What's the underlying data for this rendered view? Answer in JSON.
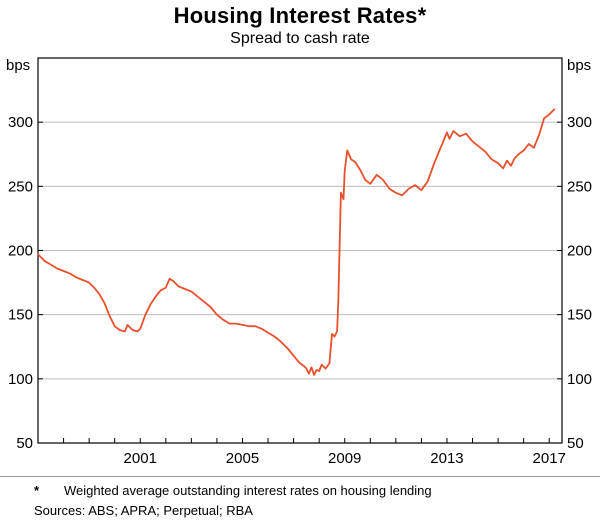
{
  "header": {
    "title": "Housing Interest Rates*",
    "subtitle": "Spread to cash rate"
  },
  "chart_data": {
    "type": "line",
    "title": "Housing Interest Rates*",
    "subtitle": "Spread to cash rate",
    "ylabel_left": "bps",
    "ylabel_right": "bps",
    "xlim": [
      1997,
      2017.5
    ],
    "ylim": [
      50,
      350
    ],
    "yticks": [
      50,
      100,
      150,
      200,
      250,
      300
    ],
    "gridlines": [
      100,
      150,
      200,
      250,
      300
    ],
    "xticks_labeled": [
      2001,
      2005,
      2009,
      2013,
      2017
    ],
    "xticks_minor_start": 1997,
    "xticks_minor_end": 2017,
    "grid": true,
    "legend_position": "none",
    "series": [
      {
        "name": "Spread to cash rate",
        "color": "#e8502d",
        "x": [
          1997.0,
          1997.25,
          1997.5,
          1997.75,
          1998.0,
          1998.25,
          1998.5,
          1998.75,
          1999.0,
          1999.2,
          1999.4,
          1999.6,
          1999.8,
          2000.0,
          2000.2,
          2000.4,
          2000.5,
          2000.7,
          2000.9,
          2001.0,
          2001.2,
          2001.4,
          2001.6,
          2001.8,
          2002.0,
          2002.15,
          2002.3,
          2002.5,
          2002.75,
          2003.0,
          2003.25,
          2003.5,
          2003.75,
          2004.0,
          2004.25,
          2004.5,
          2004.75,
          2005.0,
          2005.25,
          2005.5,
          2005.75,
          2006.0,
          2006.25,
          2006.5,
          2006.75,
          2007.0,
          2007.2,
          2007.4,
          2007.5,
          2007.6,
          2007.7,
          2007.8,
          2007.9,
          2008.0,
          2008.1,
          2008.25,
          2008.4,
          2008.5,
          2008.6,
          2008.7,
          2008.75,
          2008.85,
          2008.95,
          2009.0,
          2009.1,
          2009.25,
          2009.4,
          2009.6,
          2009.8,
          2010.0,
          2010.25,
          2010.5,
          2010.75,
          2011.0,
          2011.25,
          2011.5,
          2011.75,
          2012.0,
          2012.25,
          2012.5,
          2012.75,
          2013.0,
          2013.1,
          2013.25,
          2013.5,
          2013.75,
          2014.0,
          2014.25,
          2014.5,
          2014.75,
          2015.0,
          2015.2,
          2015.35,
          2015.5,
          2015.65,
          2015.8,
          2016.0,
          2016.2,
          2016.4,
          2016.6,
          2016.8,
          2017.0,
          2017.2
        ],
        "y": [
          197,
          192,
          189,
          186,
          184,
          182,
          179,
          177,
          175,
          171,
          166,
          159,
          149,
          141,
          138,
          137,
          142,
          138,
          137,
          139,
          150,
          158,
          164,
          169,
          171,
          178,
          176,
          172,
          170,
          168,
          164,
          160,
          156,
          150,
          146,
          143,
          143,
          142,
          141,
          141,
          139,
          136,
          133,
          129,
          124,
          118,
          113,
          110,
          108,
          104,
          109,
          103,
          107,
          106,
          111,
          108,
          112,
          135,
          133,
          137,
          160,
          245,
          240,
          262,
          278,
          271,
          269,
          263,
          255,
          252,
          259,
          255,
          248,
          245,
          243,
          248,
          251,
          247,
          254,
          268,
          280,
          292,
          287,
          293,
          289,
          291,
          285,
          281,
          277,
          271,
          268,
          264,
          270,
          266,
          272,
          275,
          278,
          283,
          280,
          290,
          303,
          306,
          310
        ]
      }
    ]
  },
  "footnote": {
    "marker": "*",
    "text": "Weighted average outstanding interest rates on housing lending",
    "sources": "Sources: ABS; APRA; Perpetual; RBA"
  }
}
